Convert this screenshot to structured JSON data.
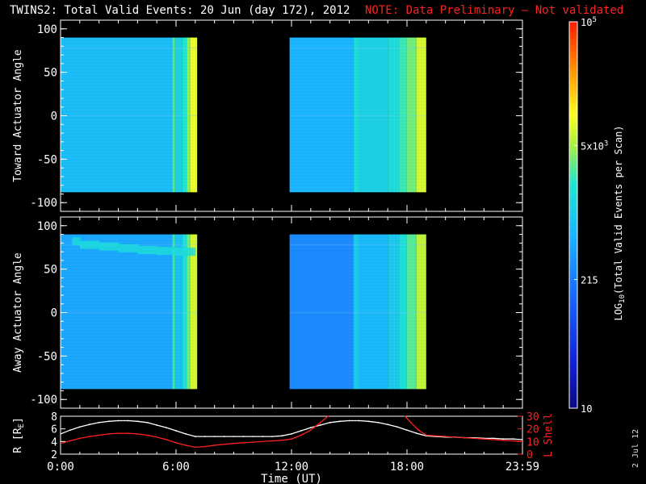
{
  "title": {
    "main": "TWINS2: Total Valid Events: 20 Jun (day 172), 2012",
    "note": "NOTE: Data Preliminary – Not validated"
  },
  "datestamp": "2 Jul 12",
  "colors": {
    "background": "#000000",
    "text": "#ffffff",
    "note": "#ff2020",
    "rshell": "#ffffff",
    "lshell": "#ff2020"
  },
  "chart_data": [
    {
      "type": "heatmap",
      "panel": "toward",
      "ylabel": "Toward Actuator Angle",
      "ylim": [
        -110,
        110
      ],
      "yticks": [
        "100",
        "50",
        "0",
        "-50",
        "-100"
      ],
      "data_angle_range": [
        -88,
        90
      ],
      "segments": [
        {
          "start_hr": 0.0,
          "end_hr": 7.1
        },
        {
          "start_hr": 11.9,
          "end_hr": 19.0
        }
      ],
      "levels_log10": [
        {
          "start_hr": 0.0,
          "end_hr": 5.8,
          "level": 0.47
        },
        {
          "start_hr": 5.8,
          "end_hr": 5.95,
          "level": 0.62
        },
        {
          "start_hr": 5.95,
          "end_hr": 6.3,
          "level": 0.52
        },
        {
          "start_hr": 6.3,
          "end_hr": 6.55,
          "level": 0.58
        },
        {
          "start_hr": 6.55,
          "end_hr": 6.75,
          "level": 0.66
        },
        {
          "start_hr": 6.75,
          "end_hr": 7.1,
          "level": 0.74
        },
        {
          "start_hr": 11.9,
          "end_hr": 15.2,
          "level": 0.45
        },
        {
          "start_hr": 15.2,
          "end_hr": 15.5,
          "level": 0.55
        },
        {
          "start_hr": 15.5,
          "end_hr": 17.0,
          "level": 0.52
        },
        {
          "start_hr": 17.0,
          "end_hr": 17.6,
          "level": 0.55
        },
        {
          "start_hr": 17.6,
          "end_hr": 18.0,
          "level": 0.6
        },
        {
          "start_hr": 18.0,
          "end_hr": 18.5,
          "level": 0.64
        },
        {
          "start_hr": 18.5,
          "end_hr": 19.0,
          "level": 0.72
        }
      ]
    },
    {
      "type": "heatmap",
      "panel": "away",
      "ylabel": "Away Actuator Angle",
      "ylim": [
        -110,
        110
      ],
      "yticks": [
        "100",
        "50",
        "0",
        "-50",
        "-100"
      ],
      "data_angle_range": [
        -88,
        90
      ],
      "segments": [
        {
          "start_hr": 0.0,
          "end_hr": 7.1
        },
        {
          "start_hr": 11.9,
          "end_hr": 19.0
        }
      ],
      "levels_log10": [
        {
          "start_hr": 0.0,
          "end_hr": 5.8,
          "level": 0.42
        },
        {
          "start_hr": 5.8,
          "end_hr": 5.95,
          "level": 0.6
        },
        {
          "start_hr": 5.95,
          "end_hr": 6.3,
          "level": 0.48
        },
        {
          "start_hr": 6.3,
          "end_hr": 6.55,
          "level": 0.56
        },
        {
          "start_hr": 6.55,
          "end_hr": 6.75,
          "level": 0.64
        },
        {
          "start_hr": 6.75,
          "end_hr": 7.1,
          "level": 0.72
        },
        {
          "start_hr": 11.9,
          "end_hr": 15.2,
          "level": 0.36
        },
        {
          "start_hr": 15.2,
          "end_hr": 15.5,
          "level": 0.5
        },
        {
          "start_hr": 15.5,
          "end_hr": 17.0,
          "level": 0.46
        },
        {
          "start_hr": 17.0,
          "end_hr": 17.6,
          "level": 0.5
        },
        {
          "start_hr": 17.6,
          "end_hr": 18.0,
          "level": 0.56
        },
        {
          "start_hr": 18.0,
          "end_hr": 18.5,
          "level": 0.62
        },
        {
          "start_hr": 18.5,
          "end_hr": 19.0,
          "level": 0.7
        }
      ],
      "band": {
        "level": 0.55,
        "points": [
          [
            0.6,
            82
          ],
          [
            1.0,
            78
          ],
          [
            2.0,
            76
          ],
          [
            3.0,
            74
          ],
          [
            4.0,
            72
          ],
          [
            5.0,
            71
          ],
          [
            6.0,
            70
          ],
          [
            7.0,
            70
          ]
        ]
      }
    },
    {
      "type": "line",
      "panel": "orbit",
      "xlabel": "Time (UT)",
      "xlim": [
        0,
        24
      ],
      "xticks": [
        "0:00",
        "6:00",
        "12:00",
        "18:00",
        "23:59"
      ],
      "ylabel_left": "R [R",
      "ylabel_left_sub": "E",
      "ylim_left": [
        2,
        8
      ],
      "yticks_left": [
        "8",
        "6",
        "4",
        "2"
      ],
      "ylabel_right": "L Shell",
      "ylim_right": [
        0,
        30
      ],
      "yticks_right": [
        "30",
        "20",
        "10",
        "0"
      ],
      "series": [
        {
          "name": "R",
          "axis": "left",
          "x": [
            0.0,
            0.5,
            1.0,
            1.5,
            2.0,
            2.5,
            3.0,
            3.5,
            4.0,
            4.5,
            5.0,
            5.5,
            6.0,
            6.5,
            7.0,
            7.5,
            8.0,
            8.5,
            9.0,
            9.5,
            10.0,
            10.5,
            11.0,
            11.5,
            12.0,
            12.5,
            13.0,
            13.5,
            14.0,
            14.5,
            15.0,
            15.5,
            16.0,
            16.5,
            17.0,
            17.5,
            18.0,
            18.5,
            19.0,
            19.5,
            20.0,
            20.5,
            21.0,
            21.5,
            22.0,
            22.5,
            23.0,
            23.5,
            24.0
          ],
          "values": [
            5.2,
            5.8,
            6.3,
            6.7,
            7.0,
            7.2,
            7.3,
            7.3,
            7.2,
            7.0,
            6.6,
            6.2,
            5.7,
            5.2,
            4.8,
            4.8,
            4.8,
            4.8,
            4.8,
            4.8,
            4.8,
            4.8,
            4.8,
            4.9,
            5.2,
            5.7,
            6.2,
            6.6,
            7.0,
            7.2,
            7.3,
            7.3,
            7.2,
            7.0,
            6.7,
            6.3,
            5.8,
            5.3,
            4.9,
            4.8,
            4.7,
            4.7,
            4.6,
            4.6,
            4.5,
            4.5,
            4.4,
            4.4,
            4.3
          ]
        },
        {
          "name": "L Shell",
          "axis": "right",
          "x": [
            0.0,
            0.5,
            1.0,
            1.5,
            2.0,
            2.5,
            3.0,
            3.5,
            4.0,
            4.5,
            5.0,
            5.5,
            6.0,
            6.5,
            7.0,
            7.5,
            8.0,
            9.0,
            10.0,
            11.0,
            11.5,
            12.0,
            12.5,
            13.0,
            13.5,
            13.9,
            null,
            17.9,
            18.2,
            18.6,
            19.0,
            19.5,
            20.0,
            21.0,
            22.0,
            23.0,
            24.0
          ],
          "values": [
            8.5,
            10.5,
            12.5,
            14,
            15,
            16,
            16.5,
            16.5,
            16,
            15,
            13.5,
            11.5,
            9,
            7,
            5.5,
            6,
            7,
            8.5,
            9.5,
            10.5,
            11,
            12,
            15,
            19,
            25,
            30,
            null,
            30,
            25,
            19,
            15,
            14.5,
            14,
            13,
            12,
            11,
            10
          ]
        }
      ]
    }
  ],
  "colorbar": {
    "label_main": "LOG",
    "label_sub": "10",
    "label_rest": "(Total Valid Events per Scan)",
    "ticks": [
      {
        "frac": 0.0,
        "label": "10",
        "sup": ""
      },
      {
        "frac": 0.333,
        "label": "215",
        "sup": ""
      },
      {
        "frac": 0.68,
        "label": "5x10",
        "sup": "3"
      },
      {
        "frac": 1.0,
        "label": "10",
        "sup": "5"
      }
    ]
  }
}
